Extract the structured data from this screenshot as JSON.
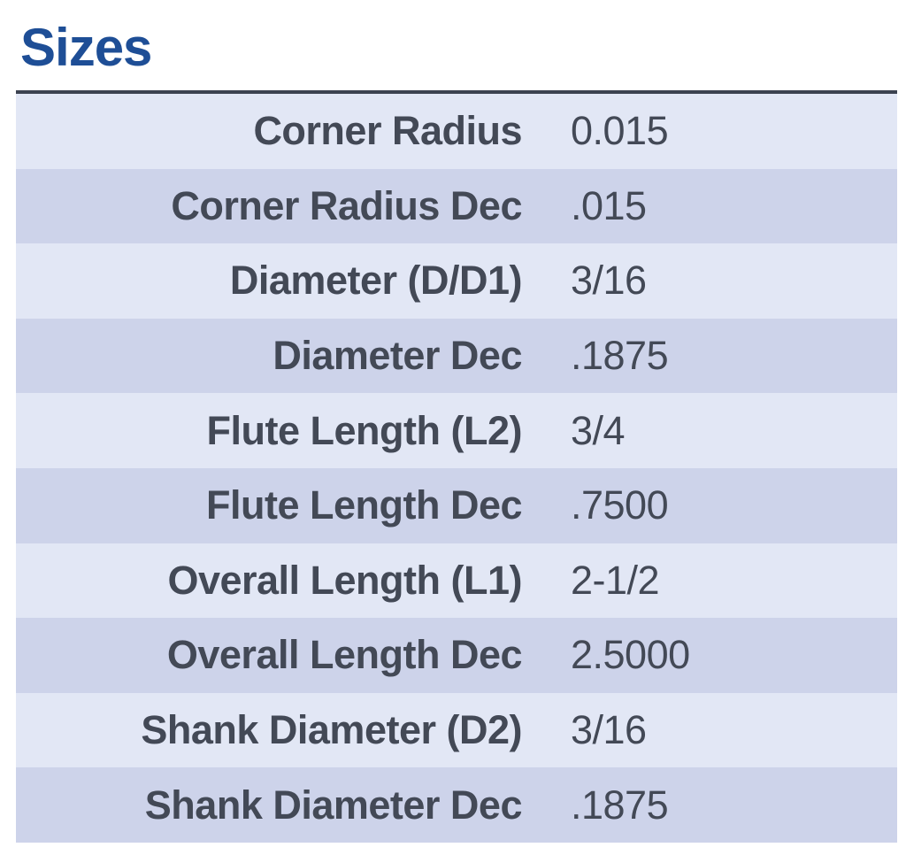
{
  "header": {
    "title": "Sizes"
  },
  "table": {
    "rows": [
      {
        "label": "Corner Radius",
        "value": "0.015"
      },
      {
        "label": "Corner Radius Dec",
        "value": ".015"
      },
      {
        "label": "Diameter (D/D1)",
        "value": "3/16"
      },
      {
        "label": "Diameter Dec",
        "value": ".1875"
      },
      {
        "label": "Flute Length (L2)",
        "value": "3/4"
      },
      {
        "label": "Flute Length Dec",
        "value": ".7500"
      },
      {
        "label": "Overall Length (L1)",
        "value": "2-1/2"
      },
      {
        "label": "Overall Length Dec",
        "value": "2.5000"
      },
      {
        "label": "Shank Diameter (D2)",
        "value": "3/16"
      },
      {
        "label": "Shank Diameter Dec",
        "value": ".1875"
      }
    ]
  },
  "colors": {
    "heading": "#1e4e96",
    "row-light": "#e2e7f5",
    "row-dark": "#cdd3ea",
    "text": "#434956",
    "rule": "#3c4250"
  }
}
